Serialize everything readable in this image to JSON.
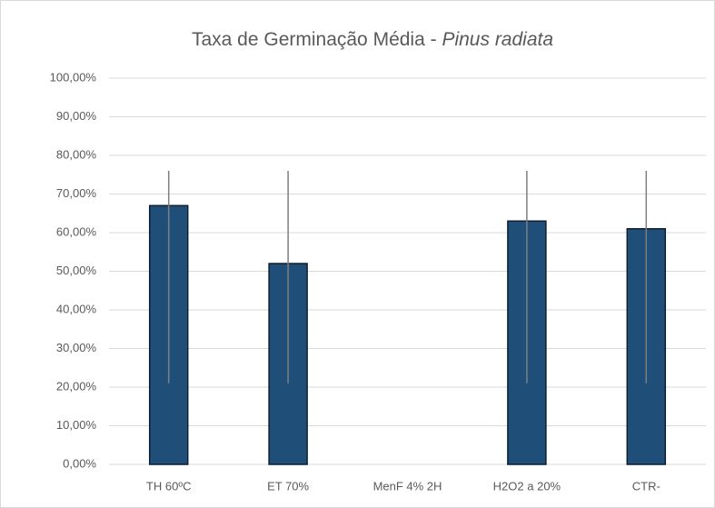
{
  "chart_data": {
    "type": "bar",
    "title": "Taxa de Germinação Média -",
    "title_italic": "Pinus radiata",
    "categories": [
      "TH 60ºC",
      "ET 70%",
      "MenF 4% 2H",
      "H2O2 a 20%",
      "CTR-"
    ],
    "values": [
      67,
      52,
      0,
      63,
      61
    ],
    "error_plus": [
      9,
      24,
      null,
      13,
      15
    ],
    "error_minus": [
      46,
      31,
      null,
      42,
      40
    ],
    "color": "#1f4e79",
    "ylim": [
      0,
      100
    ],
    "yticks": [
      {
        "value": 0,
        "label": "0,00%"
      },
      {
        "value": 10,
        "label": "10,00%"
      },
      {
        "value": 20,
        "label": "20,00%"
      },
      {
        "value": 30,
        "label": "30,00%"
      },
      {
        "value": 40,
        "label": "40,00%"
      },
      {
        "value": 50,
        "label": "50,00%"
      },
      {
        "value": 60,
        "label": "60,00%"
      },
      {
        "value": 70,
        "label": "70,00%"
      },
      {
        "value": 80,
        "label": "80,00%"
      },
      {
        "value": 90,
        "label": "90,00%"
      },
      {
        "value": 100,
        "label": "100,00%"
      }
    ],
    "grid": true
  }
}
